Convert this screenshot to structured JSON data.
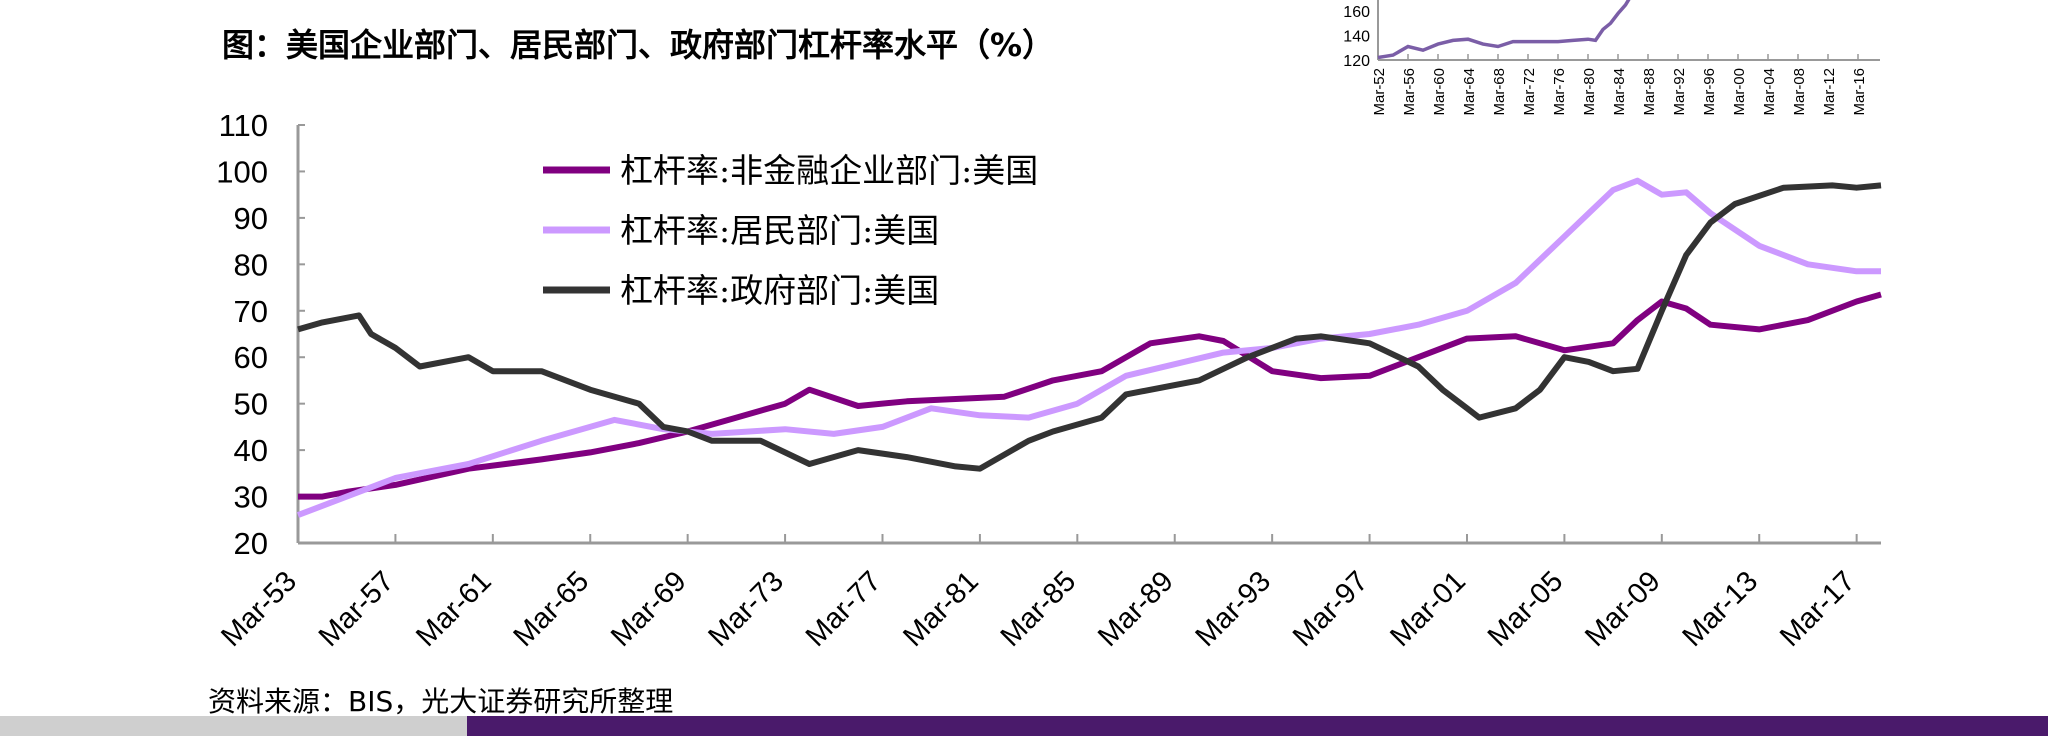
{
  "title": "图：美国企业部门、居民部门、政府部门杠杆率水平（%）",
  "source": "资料来源：BIS，光大证券研究所整理",
  "chart_data": [
    {
      "type": "line",
      "title": "",
      "xlabel": "",
      "ylabel": "",
      "ylim": [
        20,
        110
      ],
      "yticks": [
        "20",
        "30",
        "40",
        "50",
        "60",
        "70",
        "80",
        "90",
        "100",
        "110"
      ],
      "xlim": [
        1953,
        2018
      ],
      "xticks": [
        "Mar-53",
        "Mar-57",
        "Mar-61",
        "Mar-65",
        "Mar-69",
        "Mar-73",
        "Mar-77",
        "Mar-81",
        "Mar-85",
        "Mar-89",
        "Mar-93",
        "Mar-97",
        "Mar-01",
        "Mar-05",
        "Mar-09",
        "Mar-13",
        "Mar-17"
      ],
      "grid": false,
      "legend": "top-center",
      "series": [
        {
          "name": "杠杆率:非金融企业部门:美国",
          "color": "#800080",
          "x": [
            1953,
            1954,
            1955,
            1957,
            1960,
            1963,
            1965,
            1967,
            1969,
            1971,
            1973,
            1974,
            1976,
            1978,
            1980,
            1982,
            1984,
            1986,
            1988,
            1990,
            1991,
            1993,
            1995,
            1997,
            1999,
            2001,
            2003,
            2005,
            2007,
            2008,
            2009,
            2010,
            2011,
            2013,
            2015,
            2017,
            2018
          ],
          "y": [
            30,
            30,
            31,
            32.5,
            36,
            38,
            39.5,
            41.5,
            44,
            47,
            50,
            53,
            49.5,
            50.5,
            51,
            51.5,
            55,
            57,
            63,
            64.5,
            63.5,
            57,
            55.5,
            56,
            60,
            64,
            64.5,
            61.5,
            63,
            68,
            72,
            70.5,
            67,
            66,
            68,
            72,
            73.5
          ]
        },
        {
          "name": "杠杆率:居民部门:美国",
          "color": "#cc99ff",
          "x": [
            1953,
            1955,
            1957,
            1960,
            1963,
            1966,
            1968,
            1970,
            1973,
            1975,
            1977,
            1979,
            1981,
            1983,
            1985,
            1987,
            1989,
            1991,
            1993,
            1995,
            1997,
            1999,
            2001,
            2003,
            2005,
            2006,
            2007,
            2008,
            2009,
            2010,
            2011,
            2013,
            2015,
            2017,
            2018
          ],
          "y": [
            26,
            30,
            34,
            37,
            42,
            46.5,
            44.5,
            43.5,
            44.5,
            43.5,
            45,
            49,
            47.5,
            47,
            50,
            56,
            58.5,
            61,
            62,
            64,
            65,
            67,
            70,
            76,
            86,
            91,
            96,
            98,
            95,
            95.5,
            91,
            84,
            80,
            78.5,
            78.5
          ]
        },
        {
          "name": "杠杆率:政府部门:美国",
          "color": "#333333",
          "x": [
            1953,
            1954,
            1955.5,
            1956,
            1957,
            1958,
            1960,
            1961,
            1963,
            1965,
            1967,
            1968,
            1969,
            1970,
            1972,
            1974,
            1976,
            1978,
            1980,
            1981,
            1983,
            1984,
            1986,
            1987,
            1990,
            1992,
            1994,
            1995,
            1997,
            1999,
            2000,
            2001,
            2001.5,
            2003,
            2004,
            2005,
            2006,
            2007,
            2008,
            2009,
            2010,
            2011,
            2012,
            2014,
            2016,
            2017,
            2018
          ],
          "y": [
            66,
            67.5,
            69,
            65,
            62,
            58,
            60,
            57,
            57,
            53,
            50,
            45,
            44,
            42,
            42,
            37,
            40,
            38.5,
            36.5,
            36,
            42,
            44,
            47,
            52,
            55,
            60,
            64,
            64.5,
            63,
            58,
            53,
            49,
            47,
            49,
            53,
            60,
            59,
            57,
            57.5,
            70,
            82,
            89,
            93,
            96.5,
            97,
            96.5,
            97
          ]
        }
      ]
    },
    {
      "type": "line",
      "title": "",
      "ylim": [
        120,
        160
      ],
      "yticks": [
        "120",
        "140",
        "160"
      ],
      "xticks": [
        "Mar-52",
        "Mar-56",
        "Mar-60",
        "Mar-64",
        "Mar-68",
        "Mar-72",
        "Mar-76",
        "Mar-80",
        "Mar-84",
        "Mar-88",
        "Mar-92",
        "Mar-96",
        "Mar-00",
        "Mar-04",
        "Mar-08",
        "Mar-12",
        "Mar-16"
      ],
      "xlim": [
        1952,
        2018
      ],
      "grid": false,
      "series": [
        {
          "color": "#7b5ea7",
          "x": [
            1952,
            1953,
            1954,
            1956,
            1958,
            1960,
            1962,
            1964,
            1966,
            1968,
            1970,
            1972,
            1974,
            1976,
            1978,
            1980,
            1981,
            1982,
            1983,
            1984,
            1985,
            1986
          ],
          "y": [
            122,
            123,
            124,
            131,
            128,
            133,
            136,
            137,
            133,
            131,
            135,
            135,
            135,
            135,
            136,
            137,
            136,
            145,
            150,
            158,
            165,
            175
          ]
        }
      ]
    }
  ]
}
